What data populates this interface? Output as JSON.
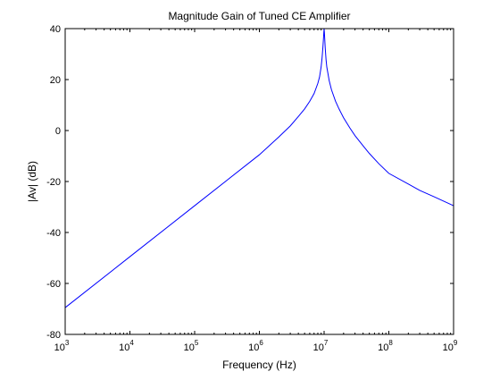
{
  "chart_data": {
    "type": "line",
    "title": "Magnitude Gain of Tuned CE Amplifier",
    "xlabel": "Frequency (Hz)",
    "ylabel": "|Av| (dB)",
    "x_scale": "log",
    "xlim": [
      1000,
      1000000000
    ],
    "ylim": [
      -80,
      40
    ],
    "x_ticks": [
      {
        "value": 1000,
        "base": "10",
        "exp": "3"
      },
      {
        "value": 10000,
        "base": "10",
        "exp": "4"
      },
      {
        "value": 100000,
        "base": "10",
        "exp": "5"
      },
      {
        "value": 1000000,
        "base": "10",
        "exp": "6"
      },
      {
        "value": 10000000,
        "base": "10",
        "exp": "7"
      },
      {
        "value": 100000000,
        "base": "10",
        "exp": "8"
      },
      {
        "value": 1000000000,
        "base": "10",
        "exp": "9"
      }
    ],
    "y_ticks": [
      "40",
      "20",
      "0",
      "-20",
      "-40",
      "-60",
      "-80"
    ],
    "grid": false,
    "series": [
      {
        "color": "#0000ff",
        "x": [
          1000,
          10000,
          100000,
          1000000,
          2000000,
          3000000,
          4000000,
          5000000,
          6000000,
          7000000,
          8000000,
          8500000,
          9000000,
          9300000,
          9600000,
          9800000,
          9900000,
          10000000,
          10100000,
          10200000,
          10400000,
          10700000,
          11000000,
          12000000,
          13000000,
          15000000,
          17000000,
          20000000,
          25000000,
          30000000,
          40000000,
          50000000,
          70000000,
          100000000,
          200000000,
          300000000,
          500000000,
          1000000000
        ],
        "y": [
          -69.5,
          -49.5,
          -29.5,
          -9.5,
          -2.5,
          1.8,
          5.5,
          8.5,
          11.5,
          14.5,
          18.5,
          21.0,
          25.0,
          28.5,
          33.0,
          36.5,
          38.5,
          40.0,
          38.5,
          36.5,
          32.5,
          28.0,
          25.0,
          19.5,
          16.0,
          11.5,
          8.5,
          5.0,
          1.0,
          -2.0,
          -6.0,
          -9.0,
          -13.0,
          -16.8,
          -21.0,
          -23.5,
          -26.0,
          -29.5
        ]
      }
    ]
  }
}
